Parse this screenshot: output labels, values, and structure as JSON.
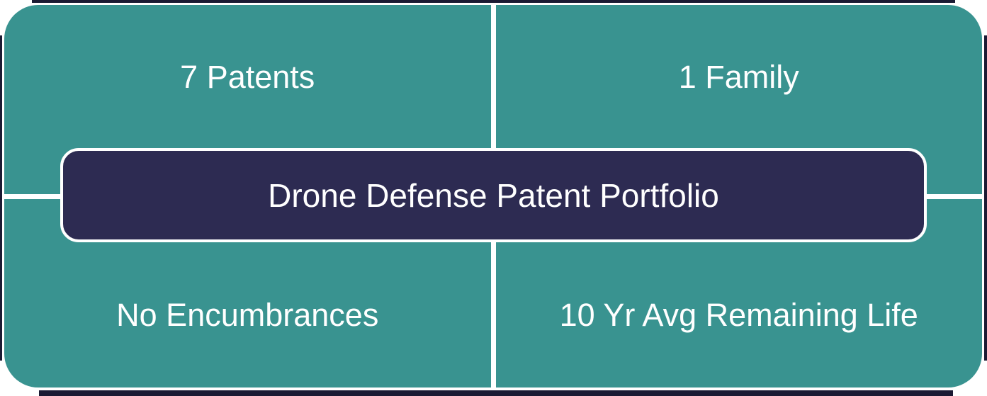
{
  "center": {
    "title": "Drone Defense Patent Portfolio"
  },
  "quadrants": {
    "top_left": {
      "label": "7 Patents"
    },
    "top_right": {
      "label": "1 Family"
    },
    "bottom_left": {
      "label": "No Encumbrances"
    },
    "bottom_right": {
      "label": "10 Yr Avg Remaining Life"
    }
  },
  "colors": {
    "teal": "#399390",
    "navy": "#2D2B52",
    "edge_dark": "#1B1A33",
    "divider_white": "#FFFFFF",
    "text": "#FFFFFF"
  }
}
